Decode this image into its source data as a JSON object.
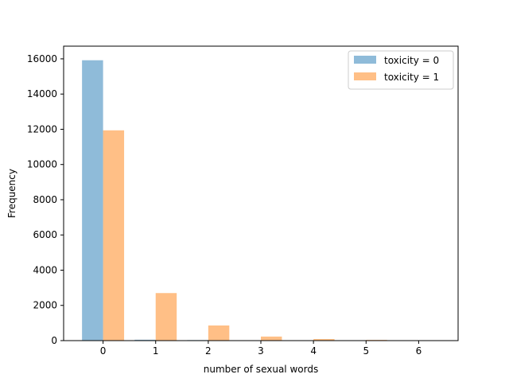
{
  "chart_data": {
    "type": "bar",
    "title": "",
    "xlabel": "number of sexual words",
    "ylabel": "Frequency",
    "x": [
      0,
      1,
      2,
      3,
      4,
      5,
      6
    ],
    "xlim": [
      -0.75,
      6.75
    ],
    "ylim": [
      0,
      16720
    ],
    "yticks": [
      0,
      2000,
      4000,
      6000,
      8000,
      10000,
      12000,
      14000,
      16000
    ],
    "grid": false,
    "legend_position": "upper right",
    "series": [
      {
        "name": "toxicity = 0",
        "color": "#1f77b4",
        "alpha": 0.5,
        "values": [
          15920,
          50,
          30,
          0,
          0,
          0,
          0
        ]
      },
      {
        "name": "toxicity = 1",
        "color": "#ff7f0e",
        "alpha": 0.5,
        "values": [
          11940,
          2700,
          860,
          230,
          90,
          40,
          15
        ]
      }
    ]
  }
}
